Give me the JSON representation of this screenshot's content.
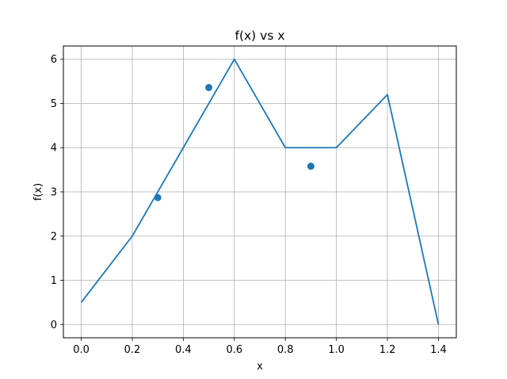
{
  "chart_data": {
    "type": "line",
    "title": "f(x) vs x",
    "xlabel": "x",
    "ylabel": "f(x)",
    "xlim": [
      -0.07,
      1.47
    ],
    "ylim": [
      -0.3,
      6.3
    ],
    "xticks": [
      0.0,
      0.2,
      0.4,
      0.6,
      0.8,
      1.0,
      1.2,
      1.4
    ],
    "xtick_labels": [
      "0.0",
      "0.2",
      "0.4",
      "0.6",
      "0.8",
      "1.0",
      "1.2",
      "1.4"
    ],
    "yticks": [
      0,
      1,
      2,
      3,
      4,
      5,
      6
    ],
    "ytick_labels": [
      "0",
      "1",
      "2",
      "3",
      "4",
      "5",
      "6"
    ],
    "grid": true,
    "color": "#1f77b4",
    "series": [
      {
        "kind": "line",
        "x": [
          0.0,
          0.2,
          0.4,
          0.6,
          0.8,
          1.0,
          1.2,
          1.4
        ],
        "y": [
          0.5,
          2.0,
          4.0,
          6.0,
          4.0,
          4.0,
          5.2,
          0.0
        ]
      },
      {
        "kind": "scatter",
        "x": [
          0.3,
          0.5,
          0.9
        ],
        "y": [
          2.87,
          5.36,
          3.58
        ]
      }
    ]
  }
}
